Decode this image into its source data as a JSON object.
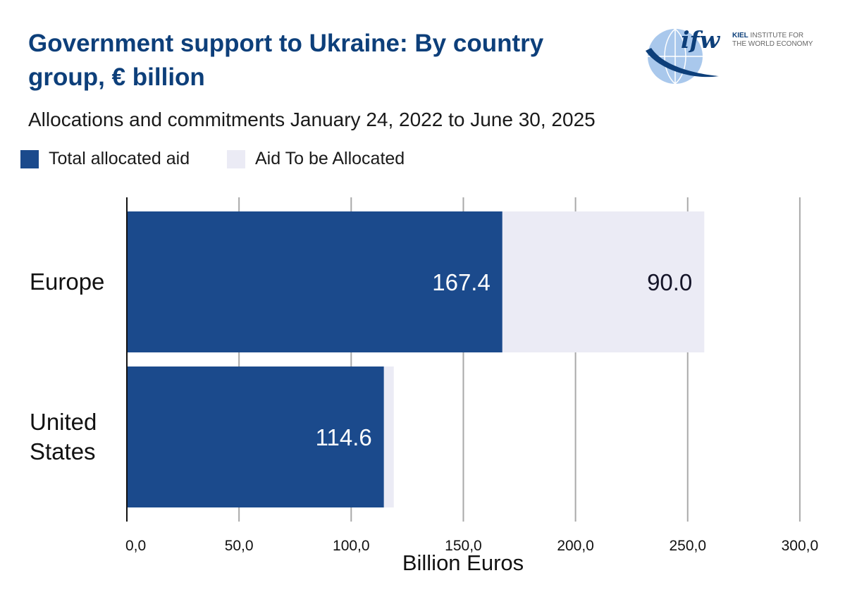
{
  "title": "Government support to Ukraine: By country group, € billion",
  "subtitle": "Allocations and commitments January 24, 2022 to June 30, 2025",
  "logo": {
    "mark": "ifw",
    "line1_bold": "KIEL",
    "line1_rest": " INSTITUTE FOR",
    "line2": "THE WORLD ECONOMY"
  },
  "colors": {
    "allocated": "#1b4a8c",
    "to_be_allocated": "#ebebf5",
    "title": "#0d3f7a"
  },
  "chart_data": {
    "type": "bar",
    "orientation": "horizontal",
    "stacked": true,
    "categories": [
      "Europe",
      "United States"
    ],
    "series": [
      {
        "name": "Total allocated aid",
        "values": [
          167.4,
          114.6
        ],
        "labels": [
          "167.4",
          "114.6"
        ]
      },
      {
        "name": "Aid To be Allocated",
        "values": [
          90.0,
          4.4
        ],
        "labels": [
          "90.0",
          ""
        ]
      }
    ],
    "xlabel": "Billion Euros",
    "xlim": [
      0,
      300
    ],
    "xticks": [
      0,
      50,
      100,
      150,
      200,
      250,
      300
    ],
    "xtick_labels": [
      "0,0",
      "50,0",
      "100,0",
      "150,0",
      "200,0",
      "250,0",
      "300,0"
    ],
    "grid": "vertical",
    "legend_position": "top-left"
  }
}
